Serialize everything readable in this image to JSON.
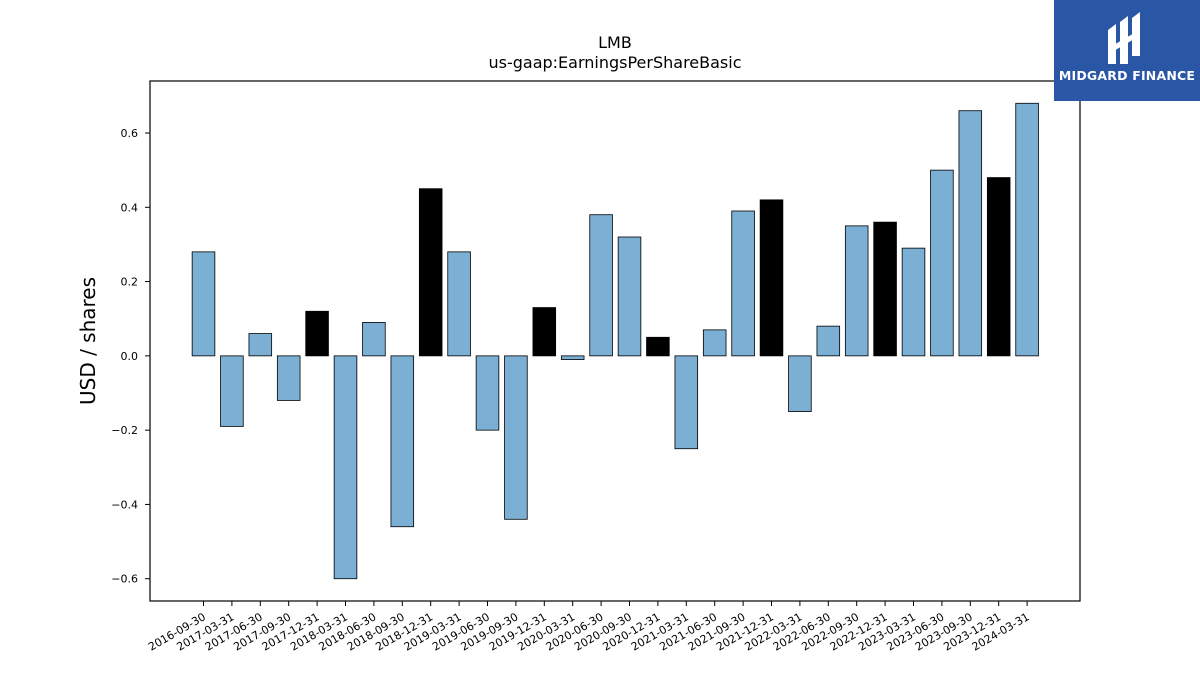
{
  "brand": {
    "name": "MIDGARD FINANCE",
    "background": "#2a56a6",
    "icon": "midgard-logo-icon"
  },
  "chart_data": {
    "type": "bar",
    "title": "LMB",
    "subtitle": "us-gaap:EarningsPerShareBasic",
    "xlabel": "",
    "ylabel": "USD / shares",
    "ylim": [
      -0.66,
      0.74
    ],
    "yticks": [
      -0.6,
      -0.4,
      -0.2,
      0.0,
      0.2,
      0.4,
      0.6
    ],
    "ytick_labels": [
      "−0.6",
      "−0.4",
      "−0.2",
      "0.0",
      "0.2",
      "0.4",
      "0.6"
    ],
    "grid": false,
    "colors": {
      "quarter": "#7bafd4",
      "annual": "#000000",
      "edge": "#000000"
    },
    "categories": [
      "2016-09-30",
      "2017-03-31",
      "2017-06-30",
      "2017-09-30",
      "2017-12-31",
      "2018-03-31",
      "2018-06-30",
      "2018-09-30",
      "2018-12-31",
      "2019-03-31",
      "2019-06-30",
      "2019-09-30",
      "2019-12-31",
      "2020-03-31",
      "2020-06-30",
      "2020-09-30",
      "2020-12-31",
      "2021-03-31",
      "2021-06-30",
      "2021-09-30",
      "2021-12-31",
      "2022-03-31",
      "2022-06-30",
      "2022-09-30",
      "2022-12-31",
      "2023-03-31",
      "2023-06-30",
      "2023-09-30",
      "2023-12-31",
      "2024-03-31"
    ],
    "values": [
      0.28,
      -0.19,
      0.06,
      -0.12,
      0.12,
      -0.6,
      0.09,
      -0.46,
      0.45,
      0.28,
      -0.2,
      -0.44,
      0.13,
      -0.01,
      0.38,
      0.32,
      0.05,
      -0.25,
      0.07,
      0.39,
      0.42,
      -0.15,
      0.08,
      0.35,
      0.36,
      0.29,
      0.5,
      0.66,
      0.48,
      0.68
    ],
    "annual": [
      false,
      false,
      false,
      false,
      true,
      false,
      false,
      false,
      true,
      false,
      false,
      false,
      true,
      false,
      false,
      false,
      true,
      false,
      false,
      false,
      true,
      false,
      false,
      false,
      true,
      false,
      false,
      false,
      true,
      false
    ]
  }
}
